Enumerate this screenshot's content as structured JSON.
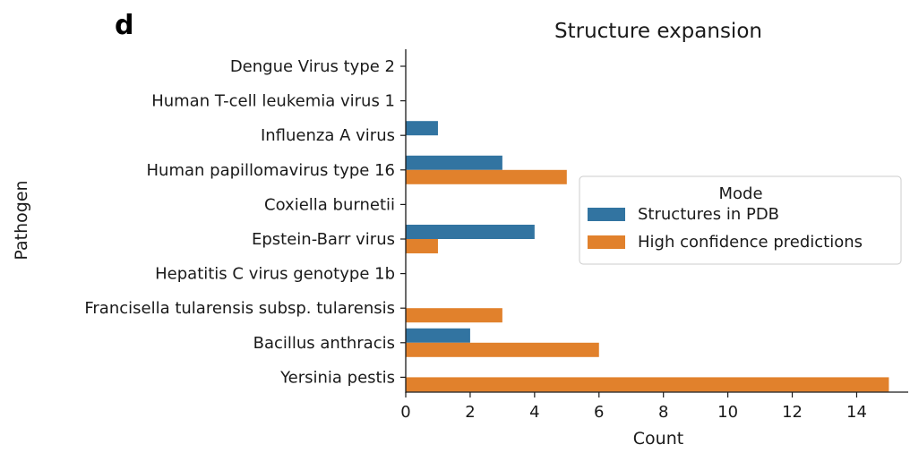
{
  "panel_label": "d",
  "chart_data": {
    "type": "bar",
    "orientation": "horizontal",
    "title": "Structure expansion",
    "xlabel": "Count",
    "ylabel": "Pathogen",
    "xlim": [
      0,
      15.6
    ],
    "xticks": [
      0,
      2,
      4,
      6,
      8,
      10,
      12,
      14
    ],
    "grid": false,
    "categories": [
      "Dengue Virus type 2",
      "Human T-cell leukemia virus 1",
      "Influenza A virus",
      "Human papillomavirus type 16",
      "Coxiella burnetii",
      "Epstein-Barr virus",
      "Hepatitis C virus genotype 1b",
      "Francisella tularensis subsp. tularensis",
      "Bacillus anthracis",
      "Yersinia pestis"
    ],
    "series": [
      {
        "name": "Structures in PDB",
        "color": "#3274a1",
        "values": [
          0,
          0,
          1,
          3,
          0,
          4,
          0,
          0,
          2,
          0
        ]
      },
      {
        "name": "High confidence predictions",
        "color": "#e1812c",
        "values": [
          0,
          0,
          0,
          5,
          0,
          1,
          0,
          3,
          6,
          15
        ]
      }
    ],
    "legend": {
      "title": "Mode",
      "position": "center-right"
    }
  }
}
